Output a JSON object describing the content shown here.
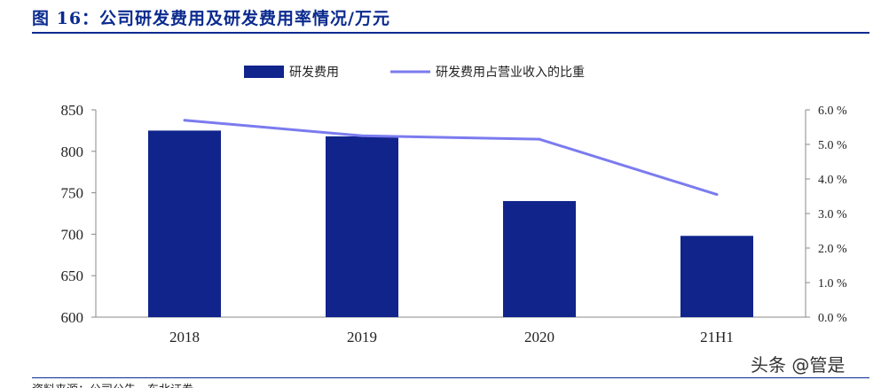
{
  "figure": {
    "title": "图 16：公司研发费用及研发费用率情况/万元",
    "watermark": "头条 @管是",
    "source_note": "资料来源：公司公告，东北证券"
  },
  "chart_data": {
    "type": "bar",
    "categories": [
      "2018",
      "2019",
      "2020",
      "21H1"
    ],
    "series": [
      {
        "name": "研发费用",
        "type": "bar",
        "axis": "left",
        "color": "#10248c",
        "values": [
          825,
          818,
          740,
          698
        ]
      },
      {
        "name": "研发费用占营业收入的比重",
        "type": "line",
        "axis": "right",
        "color": "#7b7bef",
        "values": [
          5.7,
          5.25,
          5.15,
          3.55
        ]
      }
    ],
    "y_left": {
      "min": 600,
      "max": 850,
      "ticks": [
        "600",
        "650",
        "700",
        "750",
        "800",
        "850"
      ]
    },
    "y_right": {
      "min": 0,
      "max": 6,
      "ticks": [
        "0.0 %",
        "1.0 %",
        "2.0 %",
        "3.0 %",
        "4.0 %",
        "5.0 %",
        "6.0 %"
      ]
    },
    "legend": {
      "position": "top-center"
    },
    "grid": false
  }
}
